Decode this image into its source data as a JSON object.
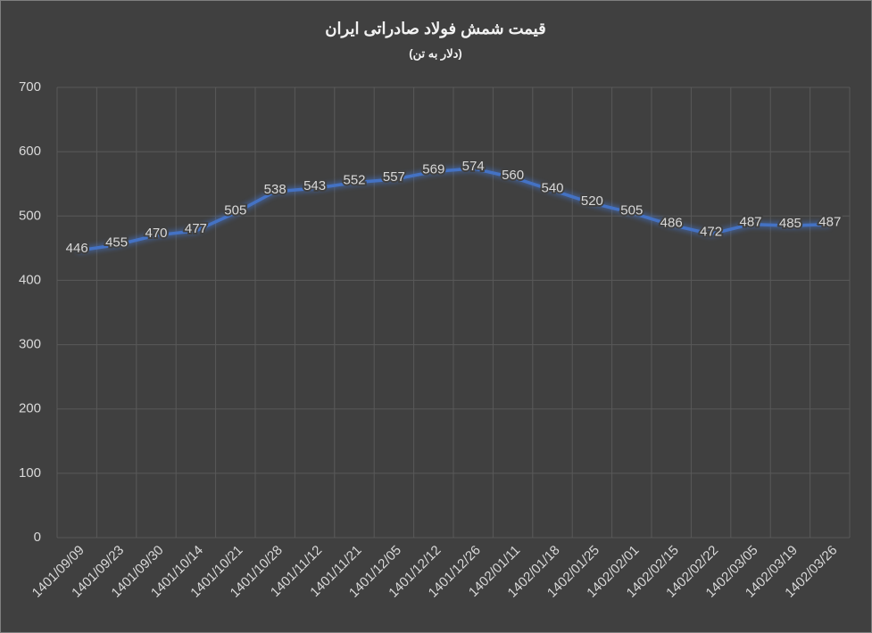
{
  "chart_data": {
    "type": "line",
    "title": "قیمت شمش فولاد صادراتی ایران",
    "subtitle": "(دلار به تن)",
    "categories": [
      "1401/09/09",
      "1401/09/23",
      "1401/09/30",
      "1401/10/14",
      "1401/10/21",
      "1401/10/28",
      "1401/11/12",
      "1401/11/21",
      "1401/12/05",
      "1401/12/12",
      "1401/12/26",
      "1402/01/11",
      "1402/01/18",
      "1402/01/25",
      "1402/02/01",
      "1402/02/15",
      "1402/02/22",
      "1402/03/05",
      "1402/03/19",
      "1402/03/26"
    ],
    "values": [
      446,
      455,
      470,
      477,
      505,
      538,
      543,
      552,
      557,
      569,
      574,
      560,
      540,
      520,
      505,
      486,
      472,
      487,
      485,
      487
    ],
    "color": "#4472c4",
    "ylim": [
      0,
      700
    ],
    "yticks": [
      0,
      100,
      200,
      300,
      400,
      500,
      600,
      700
    ],
    "grid": true
  }
}
